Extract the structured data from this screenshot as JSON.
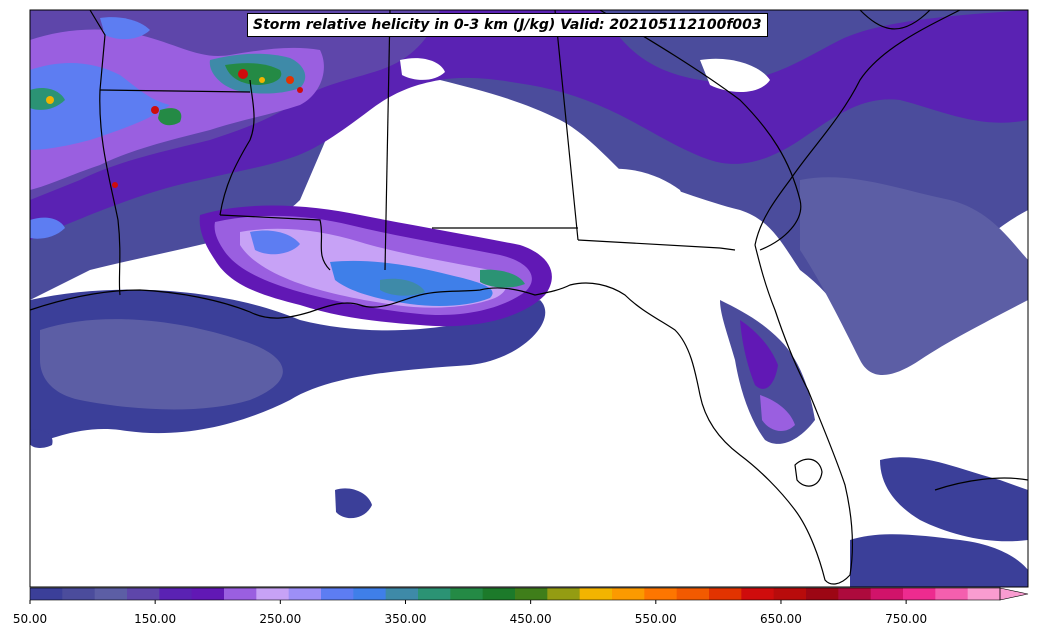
{
  "title": "Storm relative helicity in 0-3 km (J/kg) Valid: 202105112100f003",
  "colorbar": {
    "tick_labels": [
      "50.00",
      "150.00",
      "250.00",
      "350.00",
      "450.00",
      "550.00",
      "650.00",
      "750.00"
    ],
    "tick_values": [
      50,
      150,
      250,
      350,
      450,
      550,
      650,
      750
    ],
    "min": 50,
    "max": 825,
    "step": 25,
    "extend": "max",
    "colors": [
      "#3b3f99",
      "#4b4c9c",
      "#5c5ea5",
      "#5e46aa",
      "#5a22b3",
      "#6118b5",
      "#9a5fe0",
      "#c7a2f6",
      "#9d8ff7",
      "#5d7df2",
      "#3f7fe9",
      "#3e8aa8",
      "#2b9374",
      "#248a45",
      "#1c7a2a",
      "#3f7e1a",
      "#949c12",
      "#f2b400",
      "#fb9a00",
      "#fd7600",
      "#f25a00",
      "#e23300",
      "#cf0c0c",
      "#b80b0b",
      "#9c0614",
      "#ad0a3d",
      "#d1136a",
      "#ed2b8f",
      "#f45fae",
      "#f99cd0"
    ]
  },
  "map_regions": {
    "description_colors": {
      "land_line": "#000000",
      "no_data": "#ffffff"
    }
  }
}
